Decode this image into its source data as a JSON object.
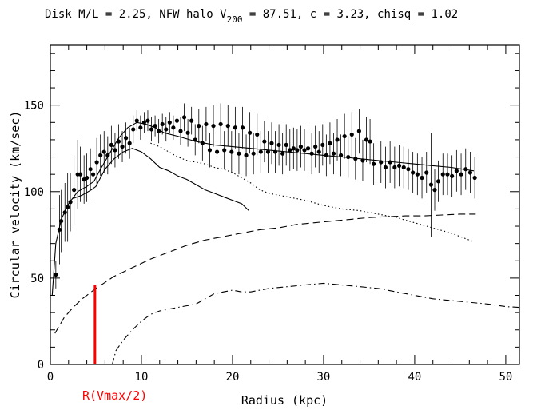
{
  "chart_data": {
    "type": "scatter",
    "title": {
      "part1": "Disk M/L = 2.25,  NFW halo V",
      "sub": "200",
      "part2": " =  87.51, c =  3.23, chisq =  1.02"
    },
    "xlabel": "Radius (kpc)",
    "ylabel": "Circular velocity (km/sec)",
    "xlim": [
      0,
      51.5
    ],
    "ylim": [
      0,
      185
    ],
    "x_ticks": [
      0,
      10,
      20,
      30,
      40,
      50
    ],
    "y_ticks": [
      0,
      50,
      100,
      150
    ],
    "x_tick_labels": [
      "0",
      "10",
      "20",
      "30",
      "40",
      "50"
    ],
    "y_tick_labels": [
      "0",
      "50",
      "100",
      "150"
    ],
    "annotation": {
      "text": "R(Vmax/2)",
      "x": 4.9,
      "y_top": 46,
      "color": "#ff0000"
    },
    "data_points": [
      {
        "x": 0.6,
        "y": 52,
        "err": 8
      },
      {
        "x": 1.0,
        "y": 78,
        "err": 20
      },
      {
        "x": 1.2,
        "y": 83,
        "err": 18
      },
      {
        "x": 1.6,
        "y": 88,
        "err": 17
      },
      {
        "x": 1.9,
        "y": 91,
        "err": 20
      },
      {
        "x": 2.2,
        "y": 94,
        "err": 17
      },
      {
        "x": 2.6,
        "y": 101,
        "err": 20
      },
      {
        "x": 3.0,
        "y": 110,
        "err": 20
      },
      {
        "x": 3.3,
        "y": 110,
        "err": 16
      },
      {
        "x": 3.7,
        "y": 107,
        "err": 14
      },
      {
        "x": 4.0,
        "y": 108,
        "err": 14
      },
      {
        "x": 4.4,
        "y": 113,
        "err": 12
      },
      {
        "x": 4.7,
        "y": 110,
        "err": 14
      },
      {
        "x": 5.1,
        "y": 117,
        "err": 14
      },
      {
        "x": 5.5,
        "y": 121,
        "err": 12
      },
      {
        "x": 5.9,
        "y": 123,
        "err": 12
      },
      {
        "x": 6.3,
        "y": 121,
        "err": 11
      },
      {
        "x": 6.7,
        "y": 127,
        "err": 11
      },
      {
        "x": 7.1,
        "y": 124,
        "err": 10
      },
      {
        "x": 7.5,
        "y": 129,
        "err": 10
      },
      {
        "x": 7.9,
        "y": 126,
        "err": 9
      },
      {
        "x": 8.3,
        "y": 131,
        "err": 9
      },
      {
        "x": 8.7,
        "y": 128,
        "err": 9
      },
      {
        "x": 9.1,
        "y": 136,
        "err": 8
      },
      {
        "x": 9.5,
        "y": 141,
        "err": 6
      },
      {
        "x": 9.9,
        "y": 137,
        "err": 7
      },
      {
        "x": 10.3,
        "y": 140,
        "err": 6
      },
      {
        "x": 10.7,
        "y": 141,
        "err": 6
      },
      {
        "x": 11.1,
        "y": 136,
        "err": 7
      },
      {
        "x": 11.5,
        "y": 138,
        "err": 6
      },
      {
        "x": 11.9,
        "y": 135,
        "err": 7
      },
      {
        "x": 12.3,
        "y": 139,
        "err": 6
      },
      {
        "x": 12.7,
        "y": 136,
        "err": 7
      },
      {
        "x": 13.1,
        "y": 140,
        "err": 6
      },
      {
        "x": 13.5,
        "y": 137,
        "err": 7
      },
      {
        "x": 13.9,
        "y": 141,
        "err": 8
      },
      {
        "x": 14.3,
        "y": 135,
        "err": 8
      },
      {
        "x": 14.7,
        "y": 143,
        "err": 8
      },
      {
        "x": 15.1,
        "y": 134,
        "err": 8
      },
      {
        "x": 15.5,
        "y": 141,
        "err": 8
      },
      {
        "x": 15.9,
        "y": 130,
        "err": 9
      },
      {
        "x": 16.3,
        "y": 138,
        "err": 10
      },
      {
        "x": 16.7,
        "y": 128,
        "err": 10
      },
      {
        "x": 17.1,
        "y": 139,
        "err": 10
      },
      {
        "x": 17.5,
        "y": 124,
        "err": 10
      },
      {
        "x": 17.9,
        "y": 138,
        "err": 12
      },
      {
        "x": 18.3,
        "y": 123,
        "err": 11
      },
      {
        "x": 18.7,
        "y": 139,
        "err": 12
      },
      {
        "x": 19.1,
        "y": 124,
        "err": 11
      },
      {
        "x": 19.5,
        "y": 138,
        "err": 12
      },
      {
        "x": 19.9,
        "y": 123,
        "err": 12
      },
      {
        "x": 20.3,
        "y": 137,
        "err": 12
      },
      {
        "x": 20.7,
        "y": 122,
        "err": 12
      },
      {
        "x": 21.1,
        "y": 137,
        "err": 12
      },
      {
        "x": 21.5,
        "y": 121,
        "err": 12
      },
      {
        "x": 21.9,
        "y": 134,
        "err": 12
      },
      {
        "x": 22.3,
        "y": 122,
        "err": 12
      },
      {
        "x": 22.7,
        "y": 133,
        "err": 12
      },
      {
        "x": 23.1,
        "y": 123,
        "err": 12
      },
      {
        "x": 23.5,
        "y": 129,
        "err": 12
      },
      {
        "x": 23.9,
        "y": 123,
        "err": 12
      },
      {
        "x": 24.3,
        "y": 128,
        "err": 12
      },
      {
        "x": 24.7,
        "y": 123,
        "err": 12
      },
      {
        "x": 25.1,
        "y": 127,
        "err": 12
      },
      {
        "x": 25.5,
        "y": 122,
        "err": 12
      },
      {
        "x": 25.9,
        "y": 127,
        "err": 12
      },
      {
        "x": 26.3,
        "y": 124,
        "err": 12
      },
      {
        "x": 26.7,
        "y": 125,
        "err": 12
      },
      {
        "x": 27.1,
        "y": 124,
        "err": 12
      },
      {
        "x": 27.5,
        "y": 126,
        "err": 12
      },
      {
        "x": 27.9,
        "y": 124,
        "err": 12
      },
      {
        "x": 28.3,
        "y": 125,
        "err": 12
      },
      {
        "x": 28.7,
        "y": 122,
        "err": 12
      },
      {
        "x": 29.1,
        "y": 126,
        "err": 12
      },
      {
        "x": 29.5,
        "y": 123,
        "err": 12
      },
      {
        "x": 29.9,
        "y": 127,
        "err": 12
      },
      {
        "x": 30.3,
        "y": 121,
        "err": 12
      },
      {
        "x": 30.7,
        "y": 128,
        "err": 12
      },
      {
        "x": 31.1,
        "y": 122,
        "err": 12
      },
      {
        "x": 31.5,
        "y": 130,
        "err": 12
      },
      {
        "x": 31.9,
        "y": 121,
        "err": 12
      },
      {
        "x": 32.3,
        "y": 132,
        "err": 13
      },
      {
        "x": 32.7,
        "y": 120,
        "err": 12
      },
      {
        "x": 33.1,
        "y": 133,
        "err": 13
      },
      {
        "x": 33.5,
        "y": 119,
        "err": 12
      },
      {
        "x": 33.9,
        "y": 135,
        "err": 13
      },
      {
        "x": 34.3,
        "y": 118,
        "err": 12
      },
      {
        "x": 34.7,
        "y": 130,
        "err": 13
      },
      {
        "x": 35.1,
        "y": 129,
        "err": 13
      },
      {
        "x": 35.5,
        "y": 116,
        "err": 12
      },
      {
        "x": 36.3,
        "y": 117,
        "err": 12
      },
      {
        "x": 36.8,
        "y": 114,
        "err": 12
      },
      {
        "x": 37.3,
        "y": 117,
        "err": 12
      },
      {
        "x": 37.8,
        "y": 114,
        "err": 12
      },
      {
        "x": 38.3,
        "y": 115,
        "err": 12
      },
      {
        "x": 38.8,
        "y": 114,
        "err": 12
      },
      {
        "x": 39.3,
        "y": 113,
        "err": 12
      },
      {
        "x": 39.8,
        "y": 111,
        "err": 12
      },
      {
        "x": 40.3,
        "y": 110,
        "err": 12
      },
      {
        "x": 40.8,
        "y": 108,
        "err": 12
      },
      {
        "x": 41.3,
        "y": 111,
        "err": 12
      },
      {
        "x": 41.8,
        "y": 104,
        "err": 30
      },
      {
        "x": 42.2,
        "y": 101,
        "err": 12
      },
      {
        "x": 42.6,
        "y": 106,
        "err": 12
      },
      {
        "x": 43.1,
        "y": 110,
        "err": 12
      },
      {
        "x": 43.6,
        "y": 110,
        "err": 12
      },
      {
        "x": 44.1,
        "y": 109,
        "err": 12
      },
      {
        "x": 44.6,
        "y": 112,
        "err": 12
      },
      {
        "x": 45.1,
        "y": 110,
        "err": 12
      },
      {
        "x": 45.6,
        "y": 113,
        "err": 12
      },
      {
        "x": 46.1,
        "y": 111,
        "err": 12
      },
      {
        "x": 46.6,
        "y": 108,
        "err": 12
      }
    ],
    "curves": [
      {
        "style": "solid",
        "points": [
          [
            0.2,
            40
          ],
          [
            0.6,
            70
          ],
          [
            1.2,
            84
          ],
          [
            2,
            93
          ],
          [
            3,
            100
          ],
          [
            4,
            103
          ],
          [
            4.8,
            106
          ],
          [
            5.5,
            113
          ],
          [
            6.5,
            122
          ],
          [
            7.5,
            131
          ],
          [
            8.5,
            137
          ],
          [
            9.5,
            140
          ],
          [
            10.5,
            139
          ],
          [
            11.5,
            137
          ],
          [
            12.5,
            134
          ],
          [
            14,
            132
          ],
          [
            16,
            129
          ],
          [
            18,
            127
          ],
          [
            20,
            126
          ],
          [
            22,
            125
          ],
          [
            24,
            124
          ],
          [
            26,
            123
          ],
          [
            28,
            122
          ],
          [
            30,
            121
          ],
          [
            32,
            120
          ],
          [
            34,
            119
          ],
          [
            36,
            118
          ],
          [
            38,
            117
          ],
          [
            40,
            116
          ],
          [
            42,
            115
          ],
          [
            44,
            114
          ],
          [
            46.5,
            112
          ]
        ]
      },
      {
        "style": "solid",
        "points": [
          [
            2.5,
            96
          ],
          [
            3.5,
            98
          ],
          [
            4.5,
            101
          ],
          [
            5,
            103
          ],
          [
            5.5,
            108
          ],
          [
            6,
            113
          ],
          [
            7,
            119
          ],
          [
            8,
            123
          ],
          [
            9,
            125
          ],
          [
            10,
            123
          ],
          [
            11,
            119
          ],
          [
            12,
            114
          ],
          [
            13,
            112
          ],
          [
            14,
            109
          ],
          [
            15,
            107
          ],
          [
            16,
            104
          ],
          [
            17,
            101
          ],
          [
            18,
            99
          ],
          [
            19,
            97
          ],
          [
            20,
            95
          ],
          [
            21,
            93
          ],
          [
            21.8,
            89
          ]
        ]
      },
      {
        "style": "dotted",
        "points": [
          [
            11,
            128
          ],
          [
            12,
            126
          ],
          [
            13,
            123
          ],
          [
            14,
            120
          ],
          [
            15,
            118
          ],
          [
            16,
            117
          ],
          [
            17,
            116
          ],
          [
            18,
            114
          ],
          [
            19,
            113
          ],
          [
            20,
            111
          ],
          [
            21,
            108
          ],
          [
            22,
            105
          ],
          [
            23,
            101
          ],
          [
            24,
            99
          ],
          [
            25,
            98
          ],
          [
            26,
            97
          ],
          [
            28,
            95
          ],
          [
            30,
            92
          ],
          [
            32,
            90
          ],
          [
            34,
            89
          ],
          [
            36,
            87
          ],
          [
            38,
            85
          ],
          [
            40,
            82
          ],
          [
            42,
            79
          ],
          [
            44,
            76
          ],
          [
            46.5,
            71
          ]
        ]
      },
      {
        "style": "dashed",
        "points": [
          [
            0.5,
            18
          ],
          [
            1.5,
            27
          ],
          [
            2.5,
            33
          ],
          [
            3.5,
            38
          ],
          [
            5,
            44
          ],
          [
            7,
            51
          ],
          [
            9,
            56
          ],
          [
            11,
            61
          ],
          [
            13,
            65
          ],
          [
            15,
            69
          ],
          [
            17,
            72
          ],
          [
            19,
            74
          ],
          [
            21,
            76
          ],
          [
            23,
            78
          ],
          [
            25,
            79
          ],
          [
            27,
            81
          ],
          [
            29,
            82
          ],
          [
            31,
            83
          ],
          [
            33,
            84
          ],
          [
            35,
            85
          ],
          [
            37,
            85.5
          ],
          [
            39,
            86
          ],
          [
            41,
            86
          ],
          [
            43,
            86.5
          ],
          [
            45,
            87
          ],
          [
            46.7,
            87
          ]
        ]
      },
      {
        "style": "dashdot",
        "points": [
          [
            6.8,
            0
          ],
          [
            7.2,
            8
          ],
          [
            8,
            14
          ],
          [
            9,
            20
          ],
          [
            10,
            25
          ],
          [
            11,
            29
          ],
          [
            12,
            31
          ],
          [
            13,
            32
          ],
          [
            14,
            33
          ],
          [
            15,
            34
          ],
          [
            16,
            35
          ],
          [
            17,
            38
          ],
          [
            18,
            41
          ],
          [
            19,
            42
          ],
          [
            20,
            43
          ],
          [
            21,
            42
          ],
          [
            22,
            42
          ],
          [
            23,
            43
          ],
          [
            24,
            44
          ],
          [
            26,
            45
          ],
          [
            28,
            46
          ],
          [
            30,
            47
          ],
          [
            32,
            46
          ],
          [
            34,
            45
          ],
          [
            36,
            44
          ],
          [
            38,
            42
          ],
          [
            40,
            40
          ],
          [
            42,
            38
          ],
          [
            44,
            37
          ],
          [
            46,
            36
          ],
          [
            48,
            35
          ],
          [
            50,
            33.5
          ],
          [
            51.5,
            33
          ]
        ]
      }
    ]
  }
}
